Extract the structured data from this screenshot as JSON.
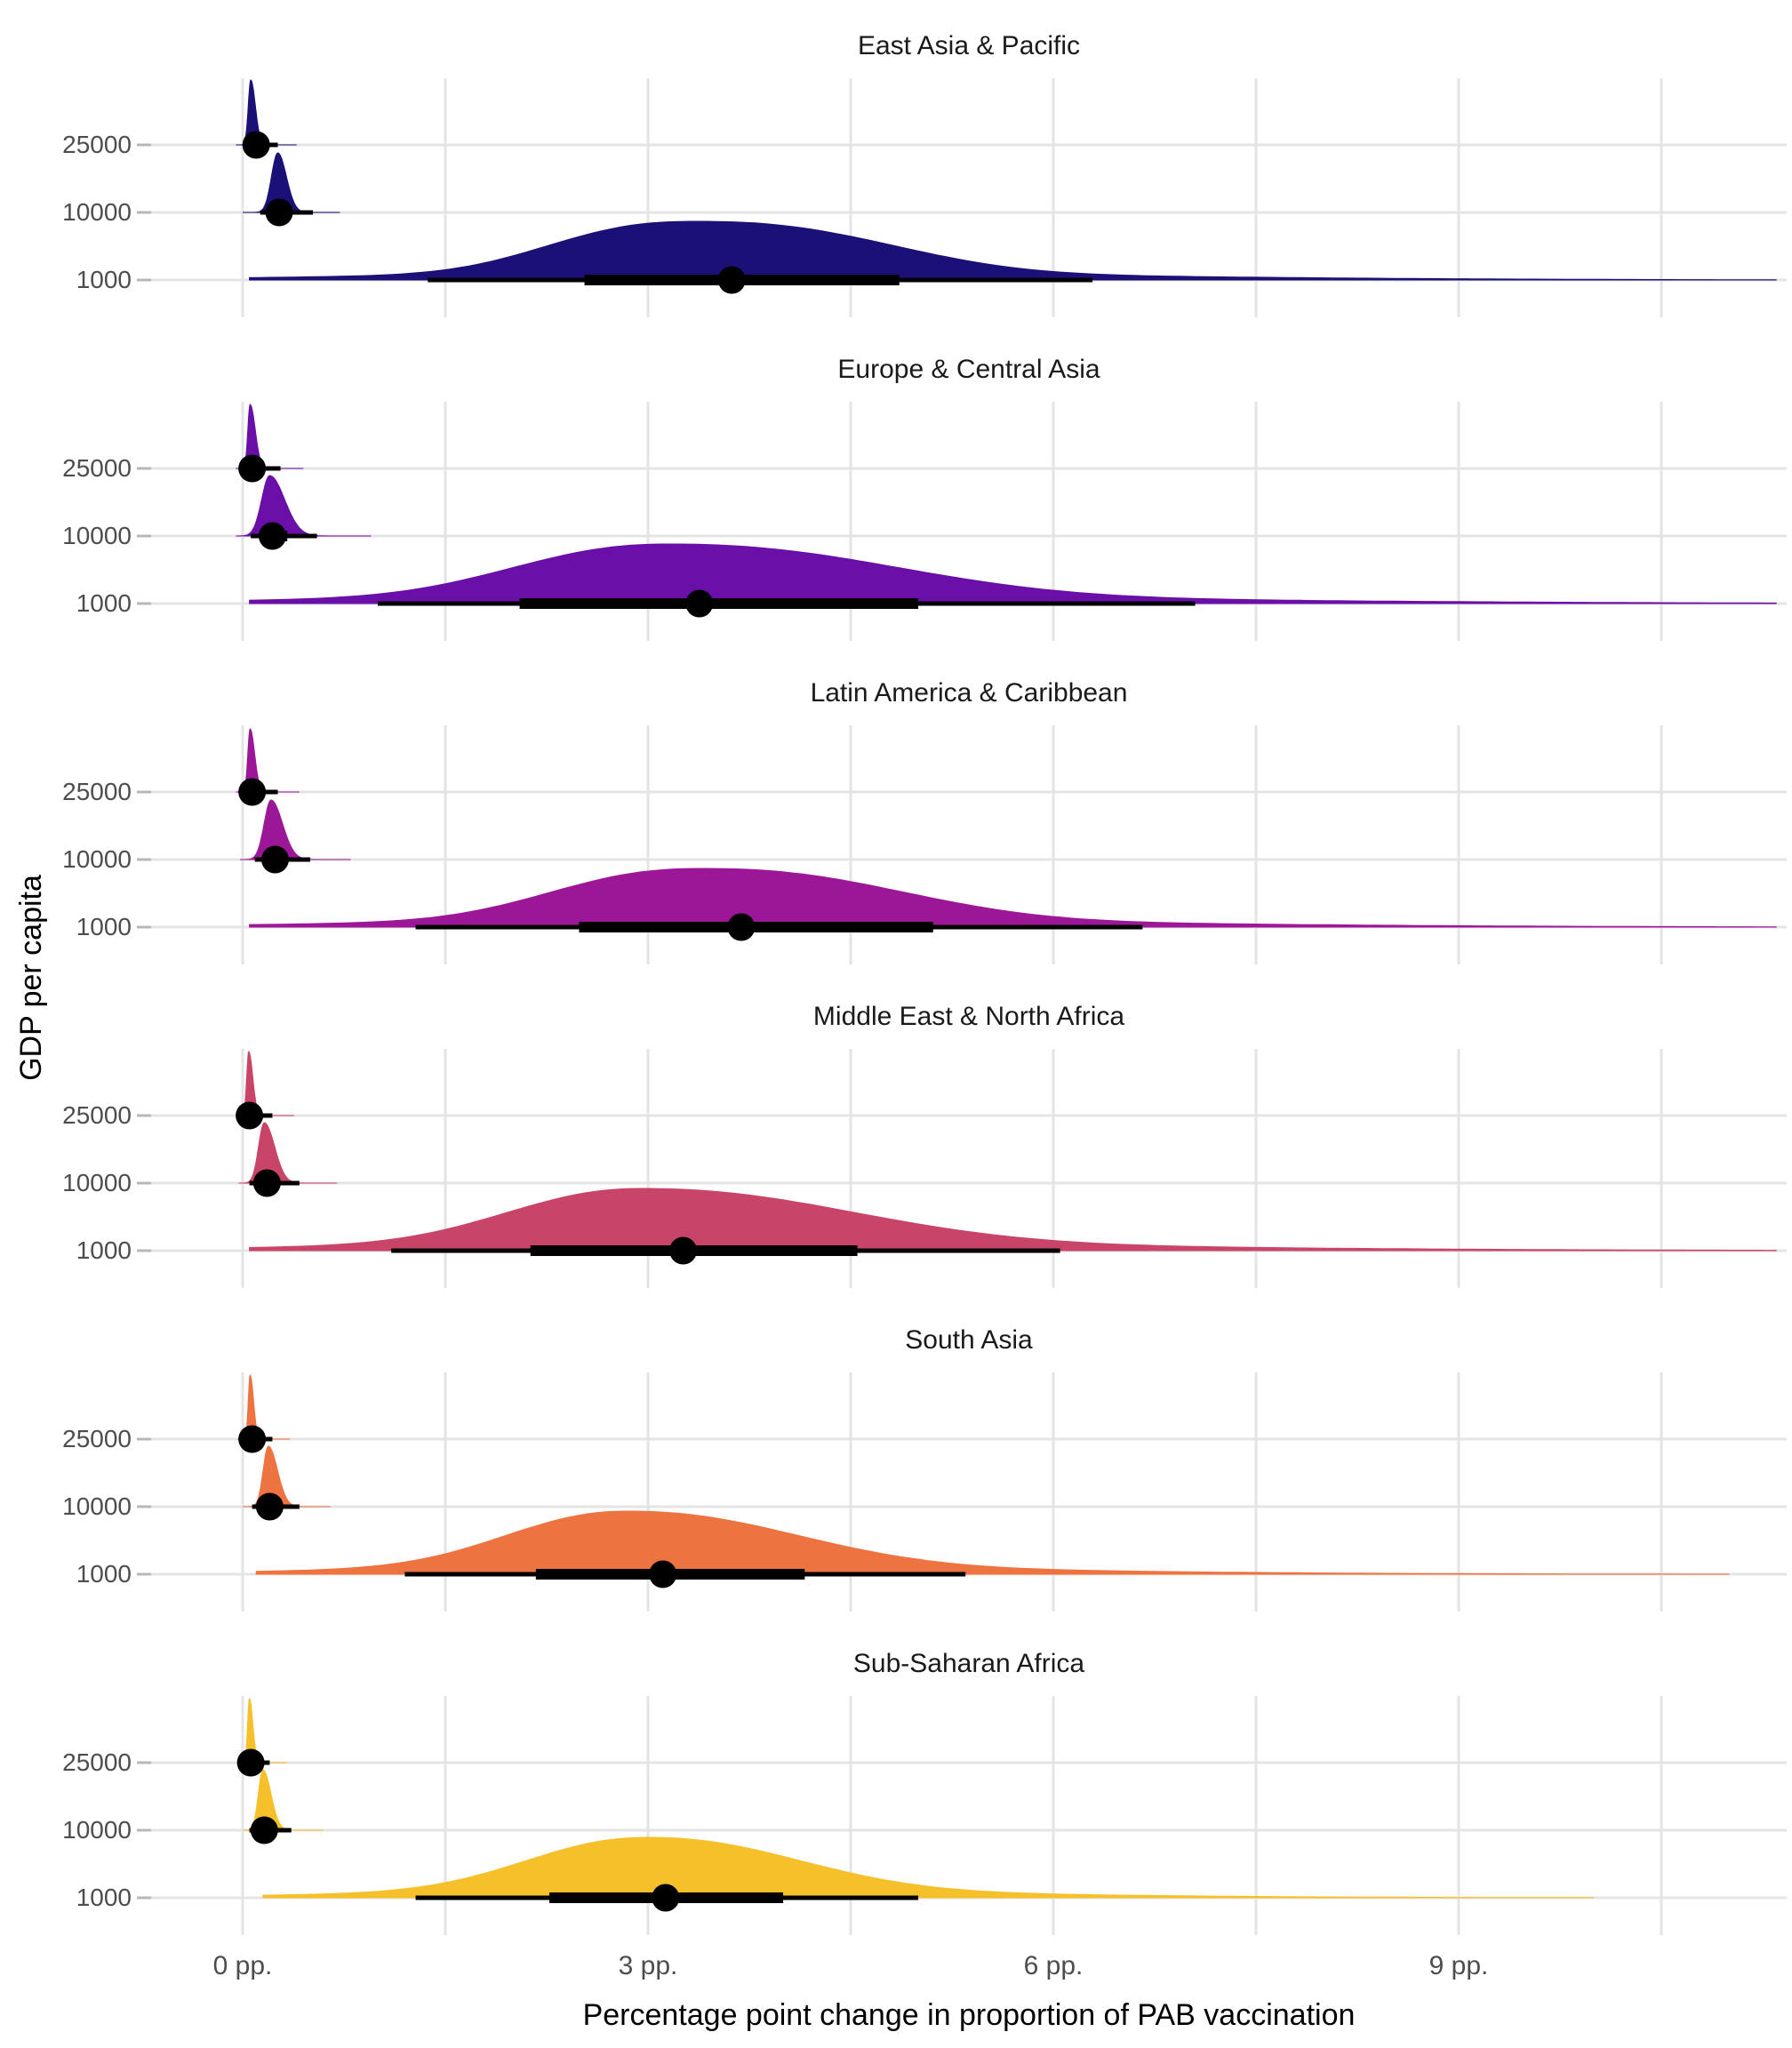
{
  "figure": {
    "x_axis_title": "Percentage point change in proportion of PAB vaccination",
    "y_axis_title": "GDP per capita",
    "x_ticks": [
      "0 pp.",
      "3 pp.",
      "6 pp.",
      "9 pp."
    ],
    "background_color": "#ffffff",
    "gridline_color": "#e4e4e4",
    "tick_mark_color": "#b8b8b8",
    "point_interval_color": "#000000"
  },
  "chart_data": {
    "type": "area",
    "subtype": "faceted-ridgeline-halfeye",
    "x_unit": "percentage points",
    "x_tick_pp": [
      0,
      3,
      6,
      9
    ],
    "x_gridline_step_pp": 1.5,
    "x_range_pp": [
      -0.68,
      11.4
    ],
    "y_levels": [
      "25000",
      "10000",
      "1000"
    ],
    "legend": "none",
    "panels": [
      {
        "region": "East Asia & Pacific",
        "color": "#1a1078",
        "rows": [
          {
            "gdp_label": "25000",
            "median_pp": 0.1,
            "thin": [
              0.02,
              0.26
            ],
            "thick": [
              0.05,
              0.16
            ],
            "density": {
              "mode": 0.06,
              "sl": 0.022,
              "sr": 0.04,
              "h": 73,
              "p": 2,
              "range": [
                -0.05,
                0.4
              ]
            }
          },
          {
            "gdp_label": "10000",
            "median_pp": 0.27,
            "thin": [
              0.13,
              0.52
            ],
            "thick": [
              0.2,
              0.36
            ],
            "density": {
              "mode": 0.26,
              "sl": 0.055,
              "sr": 0.075,
              "h": 67,
              "p": 2,
              "range": [
                0.0,
                0.72
              ]
            }
          },
          {
            "gdp_label": "1000",
            "median_pp": 3.62,
            "thin": [
              1.37,
              6.29
            ],
            "thick": [
              2.53,
              4.86
            ],
            "density": {
              "mode": 3.35,
              "sl": 1.15,
              "sr": 1.55,
              "h": 66,
              "p": 2.5,
              "range": [
                0.05,
                11.35
              ],
              "tail": true
            }
          }
        ]
      },
      {
        "region": "Europe & Central Asia",
        "color": "#6a0fa8",
        "rows": [
          {
            "gdp_label": "25000",
            "median_pp": 0.07,
            "thin": [
              0.01,
              0.28
            ],
            "thick": [
              0.03,
              0.14
            ],
            "density": {
              "mode": 0.055,
              "sl": 0.02,
              "sr": 0.045,
              "h": 72,
              "p": 2,
              "range": [
                -0.05,
                0.45
              ]
            }
          },
          {
            "gdp_label": "10000",
            "median_pp": 0.22,
            "thin": [
              0.06,
              0.55
            ],
            "thick": [
              0.13,
              0.33
            ],
            "density": {
              "mode": 0.2,
              "sl": 0.07,
              "sr": 0.13,
              "h": 68,
              "p": 2,
              "range": [
                -0.05,
                0.95
              ]
            }
          },
          {
            "gdp_label": "1000",
            "median_pp": 3.38,
            "thin": [
              1.0,
              7.05
            ],
            "thick": [
              2.05,
              5.0
            ],
            "density": {
              "mode": 3.15,
              "sl": 1.25,
              "sr": 1.85,
              "h": 67,
              "p": 2.3,
              "range": [
                0.05,
                11.35
              ],
              "tail": true
            }
          }
        ]
      },
      {
        "region": "Latin America & Caribbean",
        "color": "#9c1798",
        "rows": [
          {
            "gdp_label": "25000",
            "median_pp": 0.07,
            "thin": [
              0.01,
              0.26
            ],
            "thick": [
              0.03,
              0.13
            ],
            "density": {
              "mode": 0.055,
              "sl": 0.02,
              "sr": 0.04,
              "h": 71,
              "p": 2,
              "range": [
                -0.05,
                0.42
              ]
            }
          },
          {
            "gdp_label": "10000",
            "median_pp": 0.24,
            "thin": [
              0.09,
              0.5
            ],
            "thick": [
              0.16,
              0.33
            ],
            "density": {
              "mode": 0.21,
              "sl": 0.06,
              "sr": 0.1,
              "h": 67,
              "p": 2,
              "range": [
                -0.02,
                0.8
              ]
            }
          },
          {
            "gdp_label": "1000",
            "median_pp": 3.69,
            "thin": [
              1.28,
              6.66
            ],
            "thick": [
              2.49,
              5.11
            ],
            "density": {
              "mode": 3.4,
              "sl": 1.2,
              "sr": 1.6,
              "h": 66,
              "p": 2.4,
              "range": [
                0.05,
                11.35
              ],
              "tail": true
            }
          }
        ]
      },
      {
        "region": "Middle East & North Africa",
        "color": "#c94568",
        "rows": [
          {
            "gdp_label": "25000",
            "median_pp": 0.05,
            "thin": [
              0.0,
              0.22
            ],
            "thick": [
              0.02,
              0.1
            ],
            "density": {
              "mode": 0.045,
              "sl": 0.018,
              "sr": 0.035,
              "h": 72,
              "p": 2,
              "range": [
                -0.05,
                0.38
              ]
            }
          },
          {
            "gdp_label": "10000",
            "median_pp": 0.18,
            "thin": [
              0.05,
              0.42
            ],
            "thick": [
              0.11,
              0.27
            ],
            "density": {
              "mode": 0.16,
              "sl": 0.05,
              "sr": 0.09,
              "h": 68,
              "p": 2,
              "range": [
                -0.03,
                0.7
              ]
            }
          },
          {
            "gdp_label": "1000",
            "median_pp": 3.26,
            "thin": [
              1.1,
              6.05
            ],
            "thick": [
              2.13,
              4.55
            ],
            "density": {
              "mode": 2.95,
              "sl": 1.1,
              "sr": 1.75,
              "h": 70,
              "p": 2.2,
              "range": [
                0.05,
                11.35
              ],
              "tail": true
            }
          }
        ]
      },
      {
        "region": "South Asia",
        "color": "#ed7340",
        "rows": [
          {
            "gdp_label": "25000",
            "median_pp": 0.07,
            "thin": [
              0.02,
              0.22
            ],
            "thick": [
              0.04,
              0.12
            ],
            "density": {
              "mode": 0.055,
              "sl": 0.016,
              "sr": 0.03,
              "h": 72,
              "p": 2,
              "range": [
                -0.04,
                0.35
              ]
            }
          },
          {
            "gdp_label": "10000",
            "median_pp": 0.2,
            "thin": [
              0.07,
              0.42
            ],
            "thick": [
              0.13,
              0.28
            ],
            "density": {
              "mode": 0.19,
              "sl": 0.045,
              "sr": 0.08,
              "h": 68,
              "p": 2,
              "range": [
                0.0,
                0.65
              ]
            }
          },
          {
            "gdp_label": "1000",
            "median_pp": 3.11,
            "thin": [
              1.2,
              5.35
            ],
            "thick": [
              2.17,
              4.16
            ],
            "density": {
              "mode": 2.85,
              "sl": 1.0,
              "sr": 1.4,
              "h": 71,
              "p": 2.2,
              "range": [
                0.1,
                11.0
              ],
              "tail": true
            }
          }
        ]
      },
      {
        "region": "Sub-Saharan Africa",
        "color": "#f5c02a",
        "rows": [
          {
            "gdp_label": "25000",
            "median_pp": 0.06,
            "thin": [
              0.01,
              0.2
            ],
            "thick": [
              0.03,
              0.11
            ],
            "density": {
              "mode": 0.05,
              "sl": 0.016,
              "sr": 0.03,
              "h": 72,
              "p": 2,
              "range": [
                -0.04,
                0.33
              ]
            }
          },
          {
            "gdp_label": "10000",
            "median_pp": 0.16,
            "thin": [
              0.05,
              0.36
            ],
            "thick": [
              0.1,
              0.24
            ],
            "density": {
              "mode": 0.15,
              "sl": 0.04,
              "sr": 0.07,
              "h": 68,
              "p": 2,
              "range": [
                0.0,
                0.6
              ]
            }
          },
          {
            "gdp_label": "1000",
            "median_pp": 3.13,
            "thin": [
              1.28,
              5.0
            ],
            "thick": [
              2.27,
              4.0
            ],
            "density": {
              "mode": 3.0,
              "sl": 1.0,
              "sr": 1.25,
              "h": 68,
              "p": 2.2,
              "range": [
                0.15,
                10.0
              ],
              "tail": true
            }
          }
        ]
      }
    ]
  }
}
